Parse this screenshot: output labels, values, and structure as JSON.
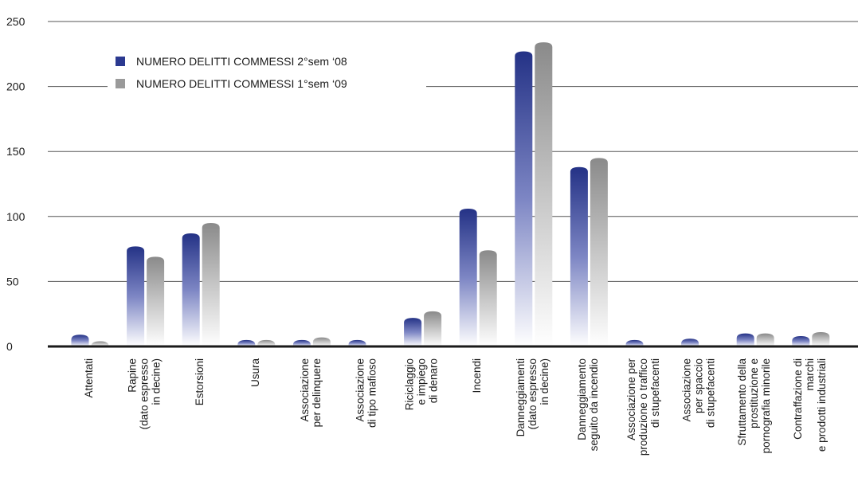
{
  "chart_data": {
    "type": "bar",
    "ylim": [
      0,
      250
    ],
    "yticks": [
      0,
      50,
      100,
      150,
      200,
      250
    ],
    "grid": true,
    "legend_position": "top-left",
    "categories": [
      [
        "Attentati"
      ],
      [
        "Rapine",
        "(dato espresso",
        "in decine)"
      ],
      [
        "Estorsioni"
      ],
      [
        "Usura"
      ],
      [
        "Associazione",
        "per delinquere"
      ],
      [
        "Associazione",
        "di tipo mafioso"
      ],
      [
        "Riciclaggio",
        "e impiego",
        "di denaro"
      ],
      [
        "Incendi"
      ],
      [
        "Danneggiamenti",
        "(dato espresso",
        "in decine)"
      ],
      [
        "Danneggiamento",
        "seguito da incendio"
      ],
      [
        "Associazione per",
        "produzione o traffico",
        "di stupefacenti"
      ],
      [
        "Associazione",
        "per spaccio",
        "di stupefacenti"
      ],
      [
        "Sfruttamento della",
        "prostituzione e",
        "pornografia minorile"
      ],
      [
        "Contraffazione di",
        "marchi",
        "e prodotti industriali"
      ]
    ],
    "series": [
      {
        "name": "NUMERO DELITTI COMMESSI 2°sem ‘08",
        "color": "#2b3990",
        "values": [
          9,
          77,
          87,
          5,
          5,
          5,
          22,
          106,
          227,
          138,
          5,
          6,
          10,
          8
        ]
      },
      {
        "name": "NUMERO DELITTI COMMESSI 1°sem ‘09",
        "color": "#8c8c8c",
        "values": [
          4,
          69,
          95,
          5,
          7,
          0,
          27,
          74,
          234,
          145,
          0,
          0,
          10,
          11
        ]
      }
    ]
  }
}
